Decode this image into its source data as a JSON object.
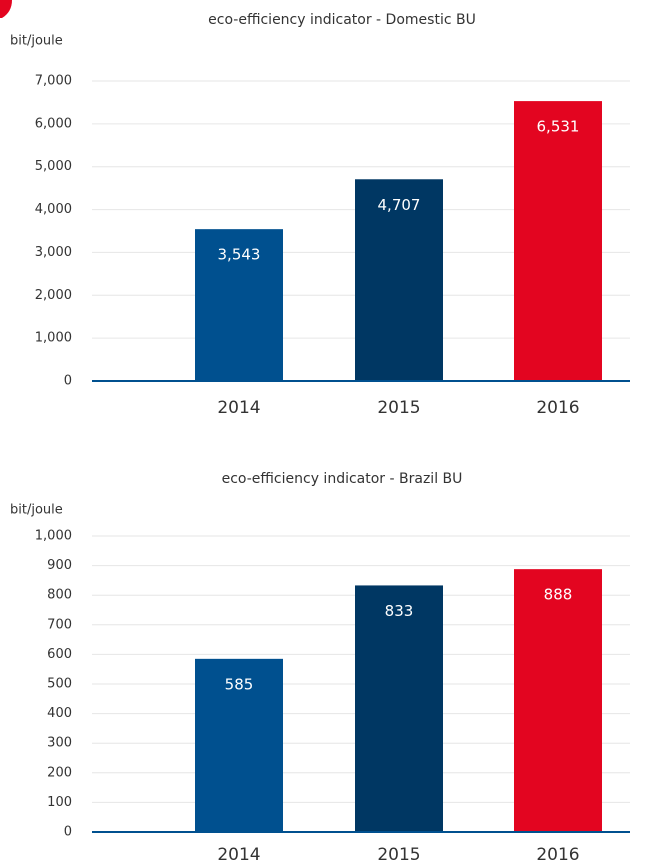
{
  "chart_data": [
    {
      "type": "bar",
      "title": "eco-efficiency indicator - Domestic BU",
      "y_label": "bit/joule",
      "categories": [
        "2014",
        "2015",
        "2016"
      ],
      "values": [
        3543,
        4707,
        6531
      ],
      "value_labels": [
        "3,543",
        "4,707",
        "6,531"
      ],
      "colors": [
        "#00508f",
        "#003763",
        "#e30520"
      ],
      "ylim": [
        0,
        7000
      ],
      "yticks": [
        0,
        {
          "value": 1000,
          "label": "1,000"
        },
        {
          "value": 2000,
          "label": "2,000"
        },
        {
          "value": 3000,
          "label": "3,000"
        },
        {
          "value": 4000,
          "label": "4,000"
        },
        {
          "value": 5000,
          "label": "5,000"
        },
        {
          "value": 6000,
          "label": "6,000"
        },
        {
          "value": 7000,
          "label": "7,000"
        }
      ],
      "grid": true
    },
    {
      "type": "bar",
      "title": "eco-efficiency indicator - Brazil BU",
      "y_label": "bit/joule",
      "categories": [
        "2014",
        "2015",
        "2016"
      ],
      "values": [
        585,
        833,
        888
      ],
      "colors": [
        "#00508f",
        "#003763",
        "#e30520"
      ],
      "ylim": [
        0,
        1000
      ],
      "yticks": [
        0,
        100,
        200,
        300,
        400,
        500,
        600,
        700,
        800,
        900,
        {
          "value": 1000,
          "label": "1,000"
        }
      ],
      "grid": true
    }
  ]
}
